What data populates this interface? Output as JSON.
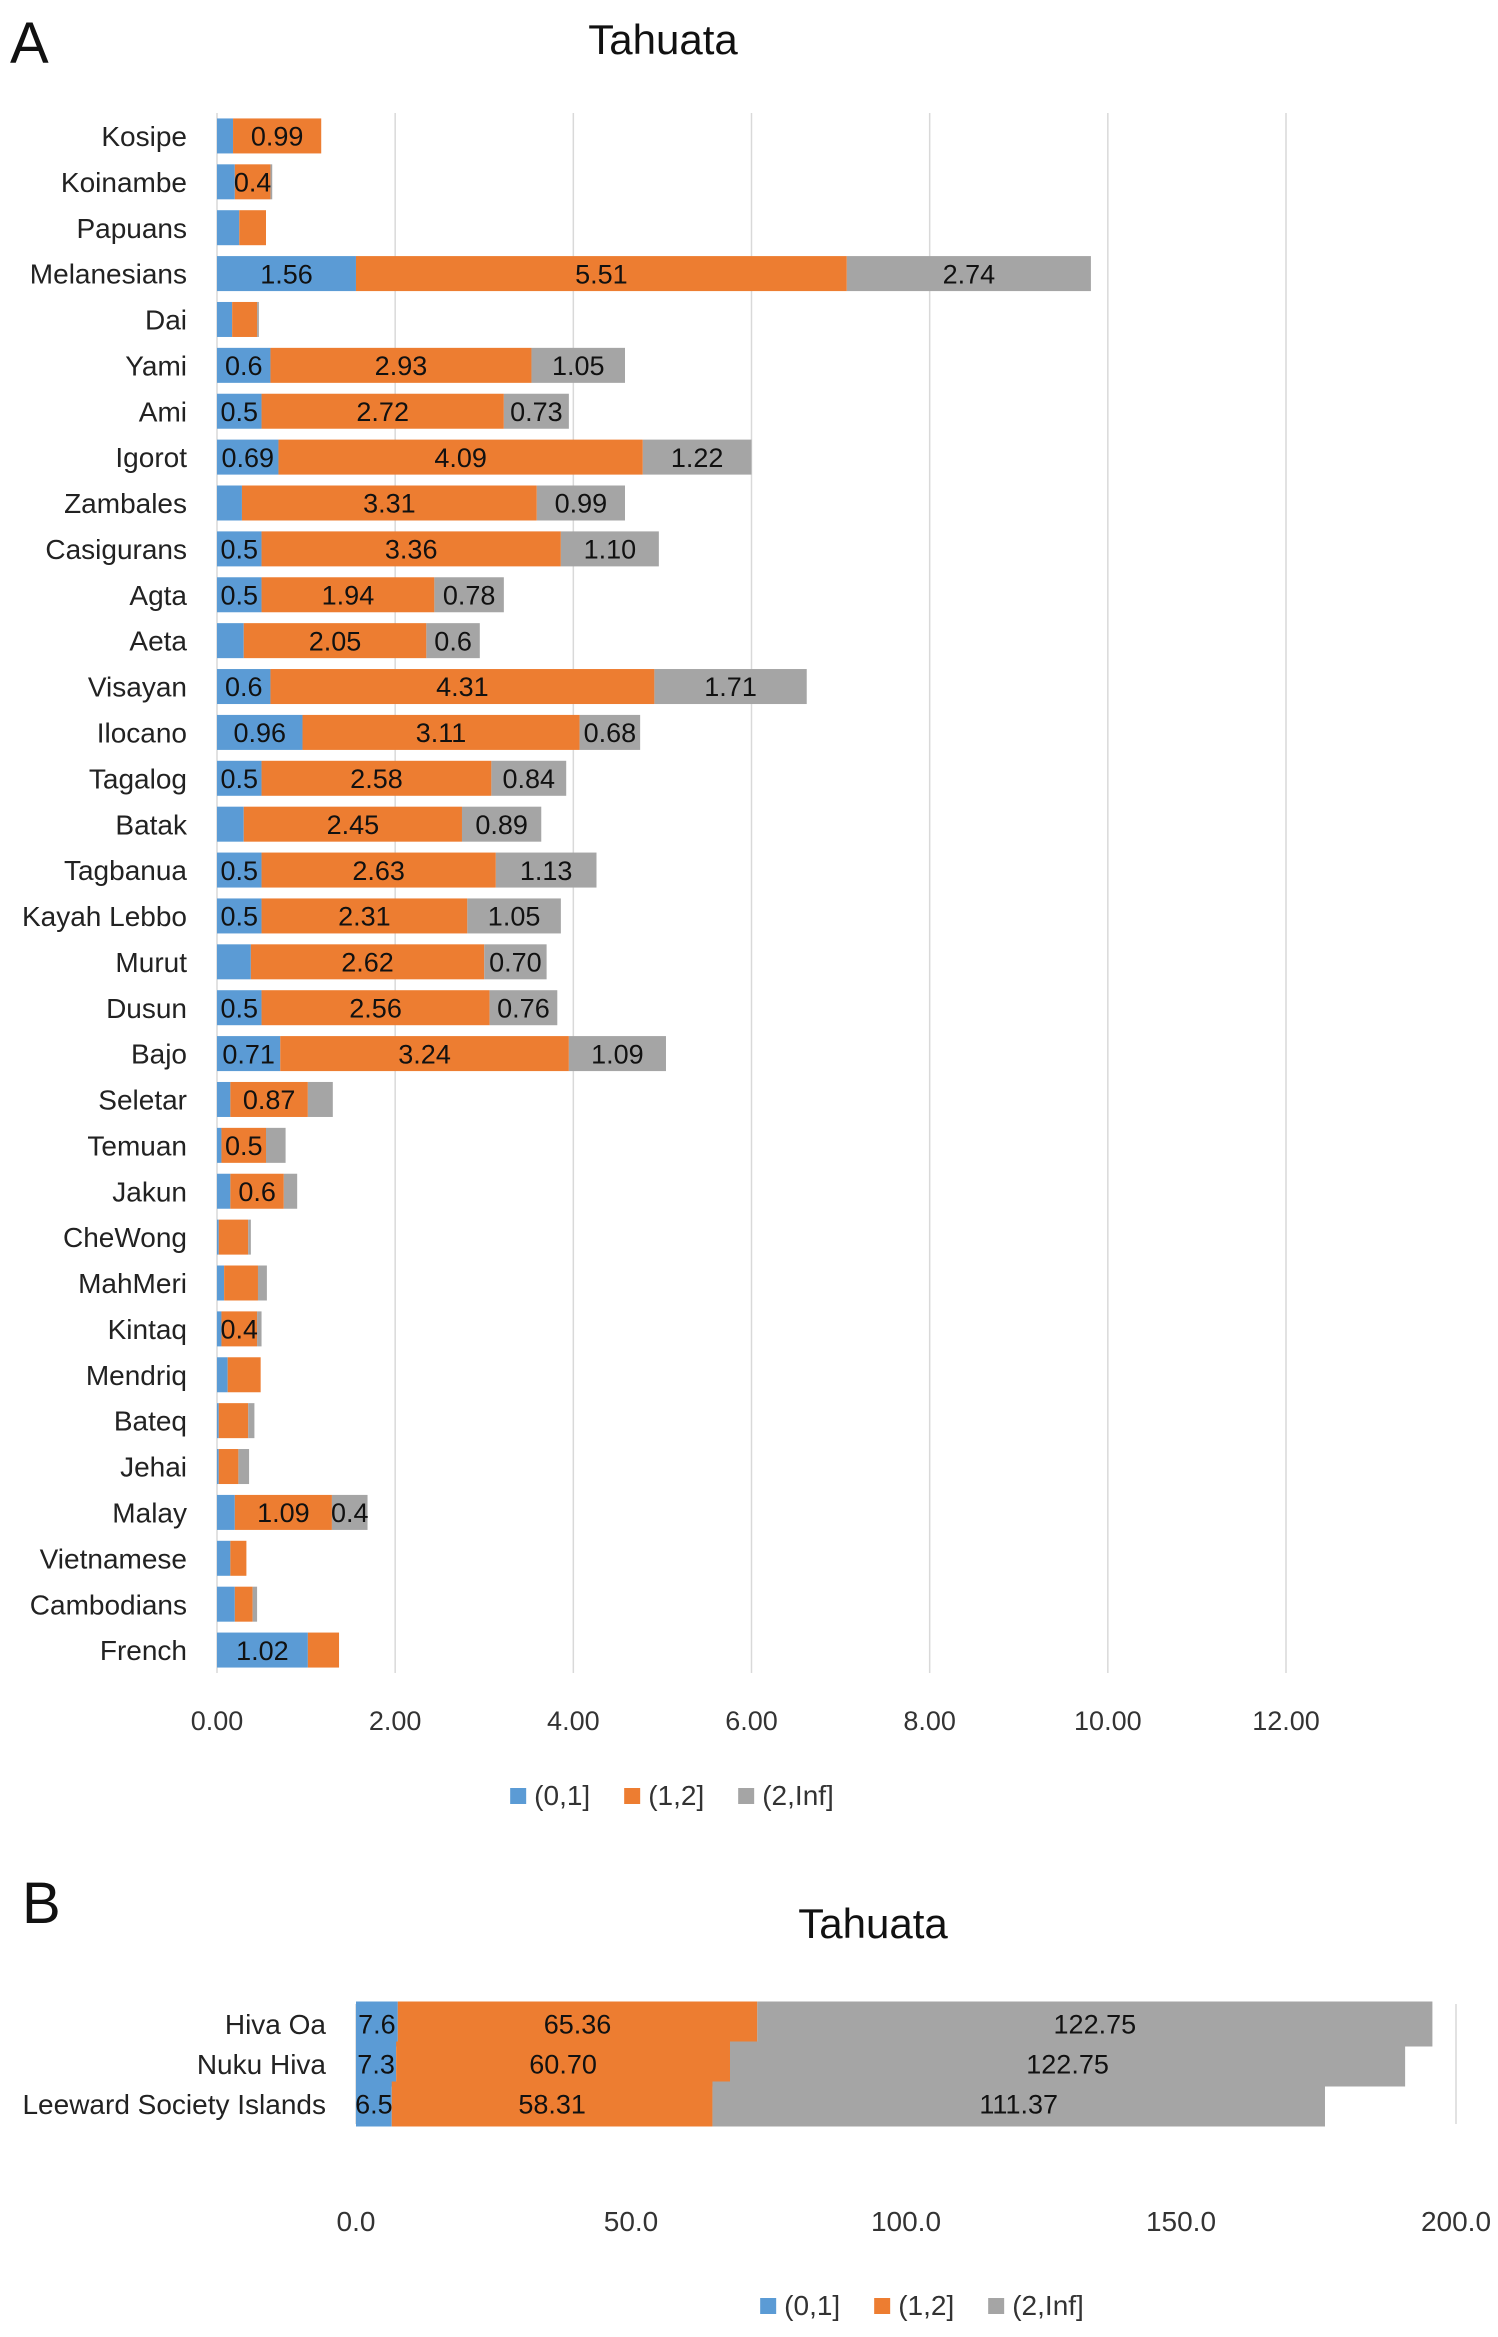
{
  "chart_data": [
    {
      "panel_label": "A",
      "type": "bar",
      "orientation": "horizontal",
      "stacked": true,
      "title": "Tahuata",
      "xlabel": "",
      "ylabel": "",
      "xlim": [
        0,
        12
      ],
      "xticks": [
        "0.00",
        "2.00",
        "4.00",
        "6.00",
        "8.00",
        "10.00",
        "12.00"
      ],
      "grid": true,
      "legend_position": "bottom",
      "categories": [
        "Kosipe",
        "Koinambe",
        "Papuans",
        "Melanesians",
        "Dai",
        "Yami",
        "Ami",
        "Igorot",
        "Zambales",
        "Casigurans",
        "Agta",
        "Aeta",
        "Visayan",
        "Ilocano",
        "Tagalog",
        "Batak",
        "Tagbanua",
        "Kayah Lebbo",
        "Murut",
        "Dusun",
        "Bajo",
        "Seletar",
        "Temuan",
        "Jakun",
        "CheWong",
        "MahMeri",
        "Kintaq",
        "Mendriq",
        "Bateq",
        "Jehai",
        "Malay",
        "Vietnamese",
        "Cambodians",
        "French"
      ],
      "series": [
        {
          "name": "(0,1]",
          "color": "#5B9BD5",
          "values": [
            0.18,
            0.2,
            0.25,
            1.56,
            0.17,
            0.6,
            0.5,
            0.69,
            0.28,
            0.5,
            0.5,
            0.3,
            0.6,
            0.96,
            0.5,
            0.3,
            0.5,
            0.5,
            0.38,
            0.5,
            0.71,
            0.15,
            0.05,
            0.15,
            0.02,
            0.08,
            0.05,
            0.12,
            0.02,
            0.02,
            0.2,
            0.15,
            0.2,
            1.02
          ],
          "labels": [
            "",
            "",
            "",
            "1.56",
            "",
            "0.6",
            "0.5",
            "0.69",
            "",
            "0.5",
            "0.5",
            "",
            "0.6",
            "0.96",
            "0.5",
            "",
            "0.5",
            "0.5",
            "",
            "0.5",
            "0.71",
            "",
            "",
            "",
            "",
            "",
            "",
            "",
            "",
            "",
            "",
            "",
            "",
            "1.02"
          ]
        },
        {
          "name": "(1,2]",
          "color": "#ED7D31",
          "values": [
            0.99,
            0.4,
            0.3,
            5.51,
            0.28,
            2.93,
            2.72,
            4.09,
            3.31,
            3.36,
            1.94,
            2.05,
            4.31,
            3.11,
            2.58,
            2.45,
            2.63,
            2.31,
            2.62,
            2.56,
            3.24,
            0.87,
            0.5,
            0.6,
            0.33,
            0.38,
            0.4,
            0.37,
            0.33,
            0.22,
            1.09,
            0.18,
            0.2,
            0.35
          ],
          "labels": [
            "0.99",
            "0.4",
            "",
            "5.51",
            "",
            "2.93",
            "2.72",
            "4.09",
            "3.31",
            "3.36",
            "1.94",
            "2.05",
            "4.31",
            "3.11",
            "2.58",
            "2.45",
            "2.63",
            "2.31",
            "2.62",
            "2.56",
            "3.24",
            "0.87",
            "0.5",
            "0.6",
            "",
            "",
            "0.4",
            "",
            "",
            "",
            "1.09",
            "",
            "",
            ""
          ]
        },
        {
          "name": "(2,Inf]",
          "color": "#A5A5A5",
          "values": [
            0.0,
            0.02,
            0.0,
            2.74,
            0.02,
            1.05,
            0.73,
            1.22,
            0.99,
            1.1,
            0.78,
            0.6,
            1.71,
            0.68,
            0.84,
            0.89,
            1.13,
            1.05,
            0.7,
            0.76,
            1.09,
            0.28,
            0.22,
            0.15,
            0.03,
            0.1,
            0.05,
            0.0,
            0.07,
            0.12,
            0.4,
            0.0,
            0.05,
            0.0
          ],
          "labels": [
            "",
            "",
            "",
            "2.74",
            "",
            "1.05",
            "0.73",
            "1.22",
            "0.99",
            "1.10",
            "0.78",
            "0.6",
            "1.71",
            "0.68",
            "0.84",
            "0.89",
            "1.13",
            "1.05",
            "0.70",
            "0.76",
            "1.09",
            "",
            "",
            "",
            "",
            "",
            "",
            "",
            "",
            "",
            "0.4",
            "",
            "",
            ""
          ]
        }
      ]
    },
    {
      "panel_label": "B",
      "type": "bar",
      "orientation": "horizontal",
      "stacked": true,
      "title": "Tahuata",
      "xlabel": "",
      "ylabel": "",
      "xlim": [
        0,
        200
      ],
      "xticks": [
        "0.0",
        "50.0",
        "100.0",
        "150.0",
        "200.0"
      ],
      "grid": true,
      "legend_position": "bottom",
      "categories": [
        "Hiva Oa",
        "Nuku Hiva",
        "Leeward Society Islands"
      ],
      "series": [
        {
          "name": "(0,1]",
          "color": "#5B9BD5",
          "values": [
            7.6,
            7.3,
            6.5
          ],
          "labels": [
            "7.6",
            "7.3",
            "6.5"
          ]
        },
        {
          "name": "(1,2]",
          "color": "#ED7D31",
          "values": [
            65.36,
            60.7,
            58.31
          ],
          "labels": [
            "65.36",
            "60.70",
            "58.31"
          ]
        },
        {
          "name": "(2,Inf]",
          "color": "#A5A5A5",
          "values": [
            122.75,
            122.75,
            111.37
          ],
          "labels": [
            "122.75",
            "122.75",
            "111.37"
          ]
        }
      ]
    }
  ]
}
